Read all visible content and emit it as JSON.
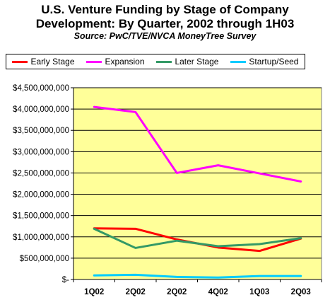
{
  "chart_data": {
    "type": "line",
    "title_lines": [
      "U.S. Venture Funding by Stage of Company",
      "Development: By Quarter, 2002 through 1H03"
    ],
    "subtitle": "Source: PwC/TVE/NVCA MoneyTree Survey",
    "categories": [
      "1Q02",
      "2Q02",
      "2Q02",
      "4Q02",
      "1Q03",
      "2Q03"
    ],
    "ylim": [
      0,
      4500000000
    ],
    "yticks": [
      {
        "value": 0,
        "label": "$-"
      },
      {
        "value": 500000000,
        "label": "$500,000,000"
      },
      {
        "value": 1000000000,
        "label": "$1,000,000,000"
      },
      {
        "value": 1500000000,
        "label": "$1,500,000,000"
      },
      {
        "value": 2000000000,
        "label": "$2,000,000,000"
      },
      {
        "value": 2500000000,
        "label": "$2,500,000,000"
      },
      {
        "value": 3000000000,
        "label": "$3,000,000,000"
      },
      {
        "value": 3500000000,
        "label": "$3,500,000,000"
      },
      {
        "value": 4000000000,
        "label": "$4,000,000,000"
      },
      {
        "value": 4500000000,
        "label": "$4,500,000,000"
      }
    ],
    "grid": true,
    "plot_background": "#ffff99",
    "legend_position": "top",
    "series": [
      {
        "name": "Early Stage",
        "color": "#ff0000",
        "values": [
          1200000000,
          1190000000,
          940000000,
          750000000,
          670000000,
          960000000
        ]
      },
      {
        "name": "Expansion",
        "color": "#ff00ff",
        "values": [
          4050000000,
          3930000000,
          2500000000,
          2680000000,
          2490000000,
          2300000000
        ]
      },
      {
        "name": "Later Stage",
        "color": "#339966",
        "values": [
          1190000000,
          740000000,
          910000000,
          780000000,
          830000000,
          970000000
        ]
      },
      {
        "name": "Startup/Seed",
        "color": "#00ccff",
        "values": [
          95000000,
          110000000,
          60000000,
          45000000,
          80000000,
          80000000
        ]
      }
    ]
  }
}
